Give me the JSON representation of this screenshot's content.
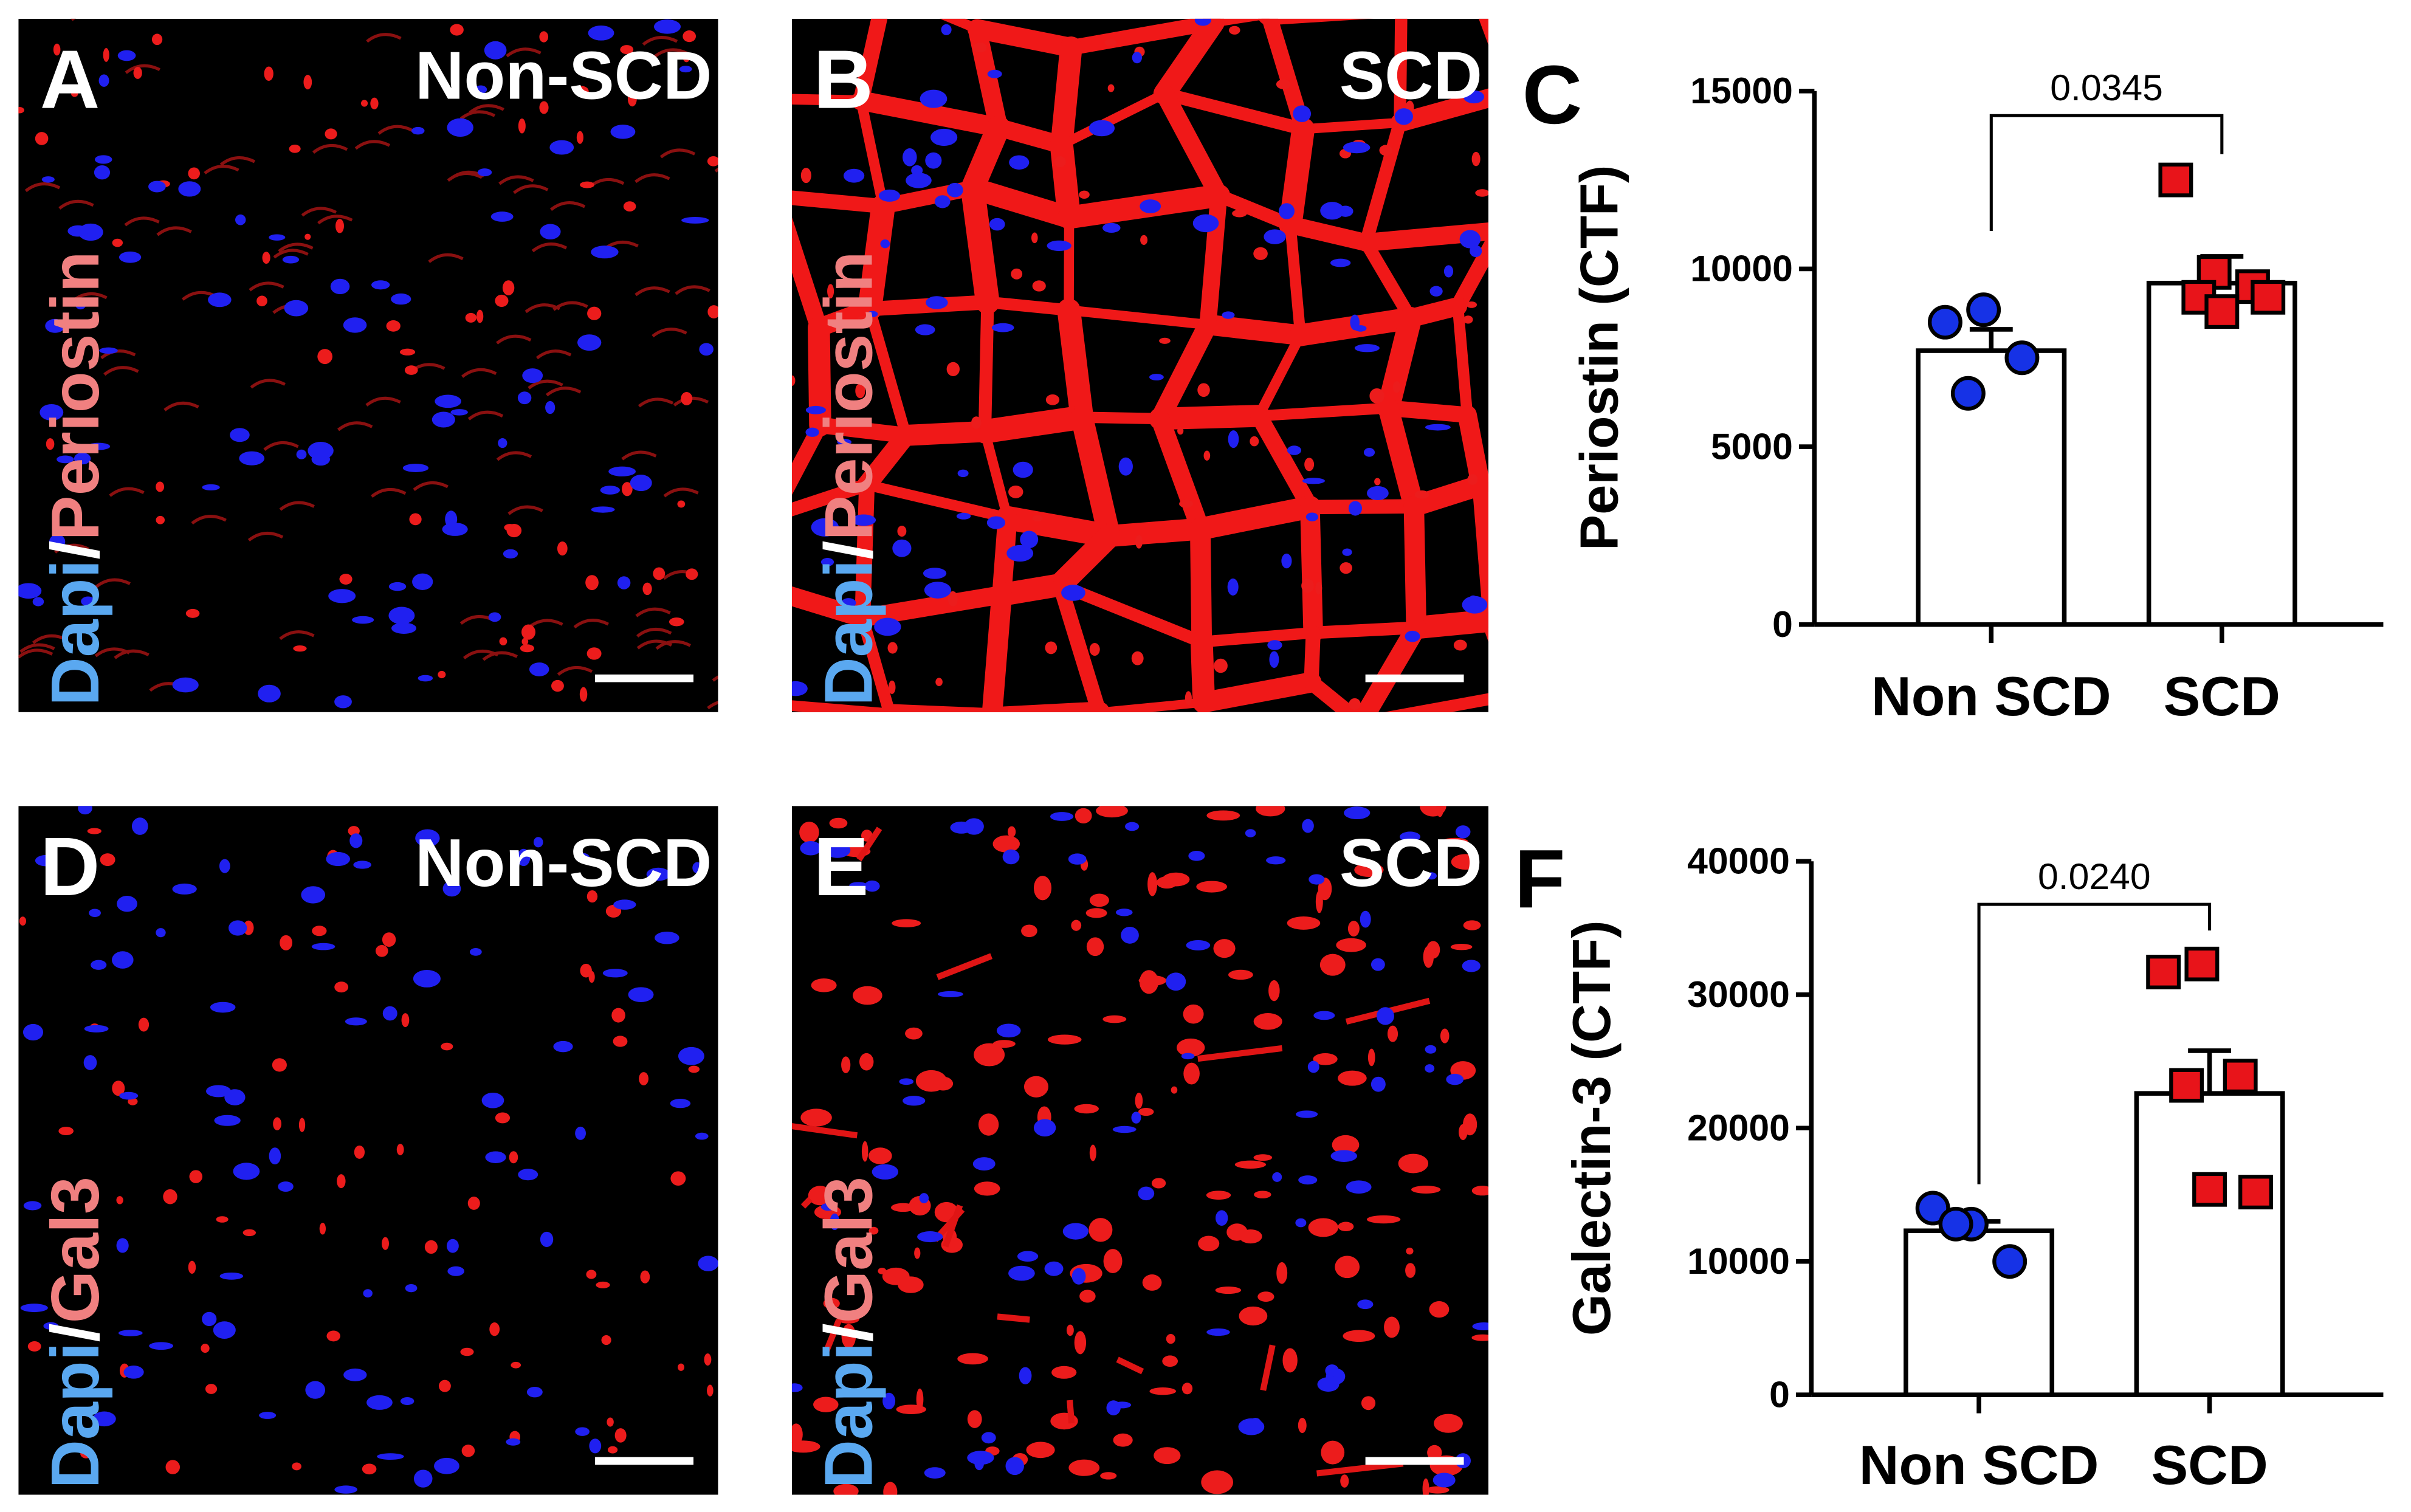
{
  "panels": [
    {
      "letter": "A",
      "condition": "Non-SCD",
      "stain": [
        "Dapi",
        "/",
        "Periostin"
      ]
    },
    {
      "letter": "B",
      "condition": "SCD",
      "stain": [
        "Dapi",
        "/",
        "Periostin"
      ]
    },
    {
      "letter": "D",
      "condition": "Non-SCD",
      "stain": [
        "Dapi",
        "/",
        "Gal3"
      ]
    },
    {
      "letter": "E",
      "condition": "SCD",
      "stain": [
        "Dapi",
        "/",
        "Gal3"
      ]
    }
  ],
  "chart_data": [
    {
      "type": "bar",
      "letter": "C",
      "ylabel": "Periostin (CTF)",
      "categories": [
        "Non SCD",
        "SCD"
      ],
      "values": [
        7700,
        9600
      ],
      "errors": [
        600,
        750
      ],
      "points": [
        [
          8500,
          8850,
          7500,
          6500
        ],
        [
          12500,
          9900,
          9500,
          9200,
          8800,
          9200
        ]
      ],
      "colors": [
        "#1632e6",
        "#e8141a"
      ],
      "markers": [
        "circle",
        "square"
      ],
      "annotation": "0.0345",
      "ylim": [
        0,
        15000
      ],
      "yticks": [
        0,
        5000,
        10000,
        15000
      ]
    },
    {
      "type": "bar",
      "letter": "F",
      "ylabel": "Galectin-3 (CTF)",
      "categories": [
        "Non SCD",
        "SCD"
      ],
      "values": [
        12300,
        22600
      ],
      "errors": [
        700,
        3200
      ],
      "points": [
        [
          14000,
          12800,
          10000,
          12800
        ],
        [
          31700,
          32300,
          23900,
          23200,
          15400,
          15200
        ]
      ],
      "colors": [
        "#1632e6",
        "#e8141a"
      ],
      "markers": [
        "circle",
        "square"
      ],
      "annotation": "0.0240",
      "ylim": [
        0,
        40000
      ],
      "yticks": [
        0,
        10000,
        20000,
        30000,
        40000
      ]
    }
  ]
}
